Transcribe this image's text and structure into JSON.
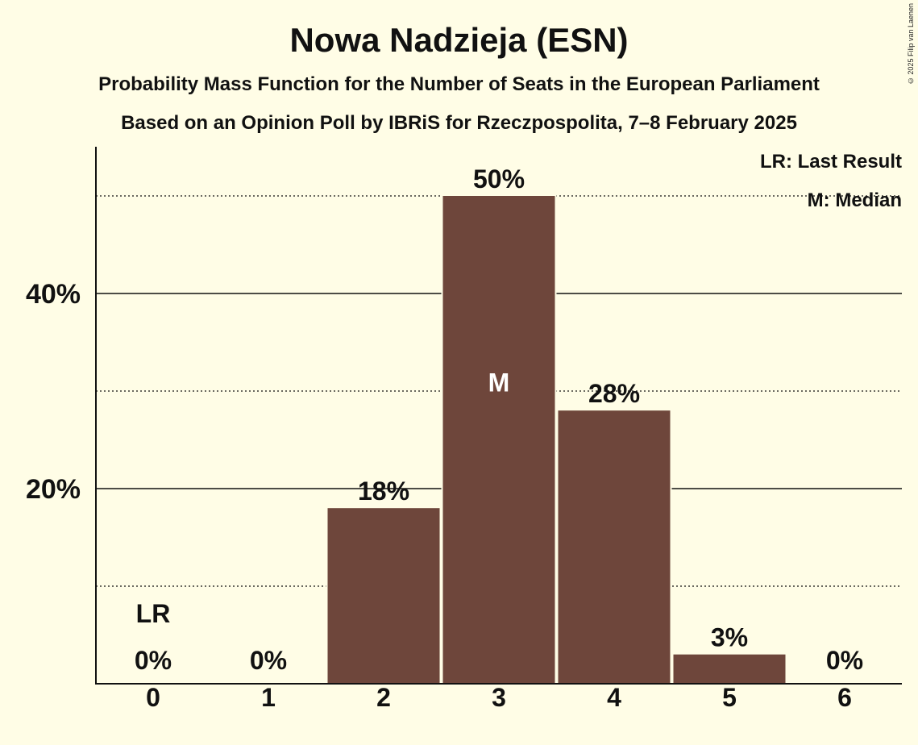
{
  "title": "Nowa Nadzieja (ESN)",
  "subtitle1": "Probability Mass Function for the Number of Seats in the European Parliament",
  "subtitle2": "Based on an Opinion Poll by IBRiS for Rzeczpospolita, 7–8 February 2025",
  "copyright": "© 2025 Filip van Laenen",
  "legend": {
    "last_result": "LR: Last Result",
    "median": "M: Median"
  },
  "colors": {
    "background": "#FFFDE6",
    "bar": "#6E463B",
    "text": "#111111"
  },
  "chart_data": {
    "type": "bar",
    "title": "Nowa Nadzieja (ESN)",
    "categories": [
      "0",
      "1",
      "2",
      "3",
      "4",
      "5",
      "6"
    ],
    "values": [
      0,
      0,
      18,
      50,
      28,
      3,
      0
    ],
    "value_labels": [
      "0%",
      "0%",
      "18%",
      "50%",
      "28%",
      "3%",
      "0%"
    ],
    "ylim": [
      0,
      55
    ],
    "yticks": [
      20,
      40
    ],
    "ytick_labels": [
      "20%",
      "40%"
    ],
    "dotted_gridlines": [
      10,
      30,
      50
    ],
    "median_category": "3",
    "median_marker": "M",
    "last_result_category": "0",
    "last_result_marker": "LR",
    "legend_position": "top-right"
  }
}
